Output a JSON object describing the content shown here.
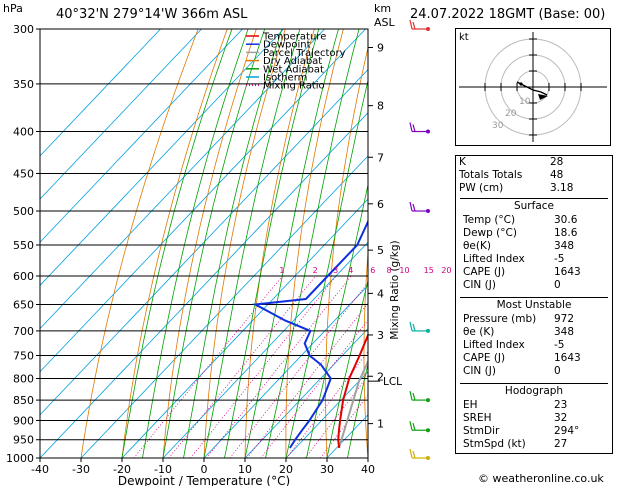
{
  "header": {
    "location": "40°32'N  279°14'W  366m  ASL",
    "date": "24.07.2022  18GMT  (Base: 00)",
    "hpa_label": "hPa",
    "km_label": "km",
    "asl_label": "ASL"
  },
  "footer": {
    "credit": "© weatheronline.co.uk"
  },
  "chart_data": {
    "type": "skew-t",
    "xlabel": "Dewpoint / Temperature (°C)",
    "ylabel": "Mixing Ratio (g/kg)",
    "x_ticks": [
      -40,
      -30,
      -20,
      -10,
      0,
      10,
      20,
      30,
      40
    ],
    "pressure_levels": [
      300,
      350,
      400,
      450,
      500,
      550,
      600,
      650,
      700,
      750,
      800,
      850,
      900,
      950,
      1000
    ],
    "km_ticks": [
      {
        "km": "1",
        "p": 908
      },
      {
        "km": "2",
        "p": 795
      },
      {
        "km": "3",
        "p": 708
      },
      {
        "km": "4",
        "p": 630
      },
      {
        "km": "5",
        "p": 558
      },
      {
        "km": "6",
        "p": 490
      },
      {
        "km": "7",
        "p": 430
      },
      {
        "km": "8",
        "p": 372
      },
      {
        "km": "9",
        "p": 316
      }
    ],
    "lcl": {
      "label": "LCL",
      "p": 806
    },
    "mixing_ratio_labels": [
      "1",
      "2",
      "3",
      "4",
      "6",
      "8",
      "10",
      "15",
      "20",
      "25"
    ],
    "legend": [
      {
        "name": "Temperature",
        "color": "#e00000"
      },
      {
        "name": "Dewpoint",
        "color": "#1030e0"
      },
      {
        "name": "Parcel Trajectory",
        "color": "#a0a0a0"
      },
      {
        "name": "Dry Adiabat",
        "color": "#e07800"
      },
      {
        "name": "Wet Adiabat",
        "color": "#00a000"
      },
      {
        "name": "Isotherm",
        "color": "#00a0e0"
      },
      {
        "name": "Mixing Ratio",
        "color": "#d00080"
      }
    ],
    "temperature_profile": [
      [
        972,
        30.6
      ],
      [
        950,
        28.5
      ],
      [
        925,
        26.5
      ],
      [
        900,
        24.5
      ],
      [
        850,
        20.5
      ],
      [
        800,
        17.0
      ],
      [
        750,
        14.2
      ],
      [
        700,
        11.0
      ],
      [
        650,
        8.5
      ],
      [
        600,
        5.0
      ],
      [
        550,
        1.5
      ],
      [
        500,
        -4.5
      ],
      [
        450,
        -10.0
      ],
      [
        400,
        -16.5
      ],
      [
        350,
        -24.5
      ],
      [
        300,
        -34.0
      ]
    ],
    "dewpoint_profile": [
      [
        972,
        18.6
      ],
      [
        950,
        18.0
      ],
      [
        925,
        17.5
      ],
      [
        900,
        17.0
      ],
      [
        850,
        15.5
      ],
      [
        800,
        12.5
      ],
      [
        770,
        7.0
      ],
      [
        750,
        2.0
      ],
      [
        725,
        -2.0
      ],
      [
        700,
        -3.5
      ],
      [
        680,
        -12.0
      ],
      [
        650,
        -23.0
      ],
      [
        640,
        -12.0
      ],
      [
        600,
        -12.0
      ],
      [
        560,
        -12.0
      ],
      [
        550,
        -12.0
      ],
      [
        500,
        -16.0
      ],
      [
        470,
        -20.0
      ],
      [
        450,
        -22.0
      ],
      [
        420,
        -22.0
      ],
      [
        400,
        -26.0
      ],
      [
        370,
        -30.0
      ],
      [
        350,
        -40.0
      ],
      [
        330,
        -39.0
      ],
      [
        310,
        -40.0
      ],
      [
        300,
        -42.0
      ]
    ],
    "parcel_profile": [
      [
        972,
        30.6
      ],
      [
        806,
        20.0
      ],
      [
        700,
        14.0
      ],
      [
        600,
        6.5
      ],
      [
        500,
        -2.0
      ],
      [
        400,
        -14.0
      ],
      [
        300,
        -30.0
      ]
    ],
    "wind_barbs": [
      {
        "p": 300,
        "color": "#e03030"
      },
      {
        "p": 400,
        "color": "#8000c0"
      },
      {
        "p": 500,
        "color": "#8000c0"
      },
      {
        "p": 700,
        "color": "#00b0a0"
      },
      {
        "p": 850,
        "color": "#10a010"
      },
      {
        "p": 925,
        "color": "#10a010"
      },
      {
        "p": 1000,
        "color": "#d0b000"
      }
    ]
  },
  "hodograph": {
    "unit_label": "kt",
    "ring_labels": [
      "10",
      "20",
      "30"
    ]
  },
  "indices": {
    "k_label": "K",
    "k": "28",
    "tt_label": "Totals Totals",
    "tt": "48",
    "pw_label": "PW (cm)",
    "pw": "3.18"
  },
  "surface": {
    "title": "Surface",
    "temp_label": "Temp (°C)",
    "temp": "30.6",
    "dewp_label": "Dewp (°C)",
    "dewp": "18.6",
    "theta_label": "θe(K)",
    "theta": "348",
    "li_label": "Lifted Index",
    "li": "-5",
    "cape_label": "CAPE (J)",
    "cape": "1643",
    "cin_label": "CIN (J)",
    "cin": "0"
  },
  "most_unstable": {
    "title": "Most Unstable",
    "pres_label": "Pressure (mb)",
    "pres": "972",
    "theta_label": "θe (K)",
    "theta": "348",
    "li_label": "Lifted Index",
    "li": "-5",
    "cape_label": "CAPE (J)",
    "cape": "1643",
    "cin_label": "CIN (J)",
    "cin": "0"
  },
  "hodo_stats": {
    "title": "Hodograph",
    "eh_label": "EH",
    "eh": "23",
    "sreh_label": "SREH",
    "sreh": "32",
    "stmdir_label": "StmDir",
    "stmdir": "294°",
    "stmspd_label": "StmSpd (kt)",
    "stmspd": "27"
  }
}
